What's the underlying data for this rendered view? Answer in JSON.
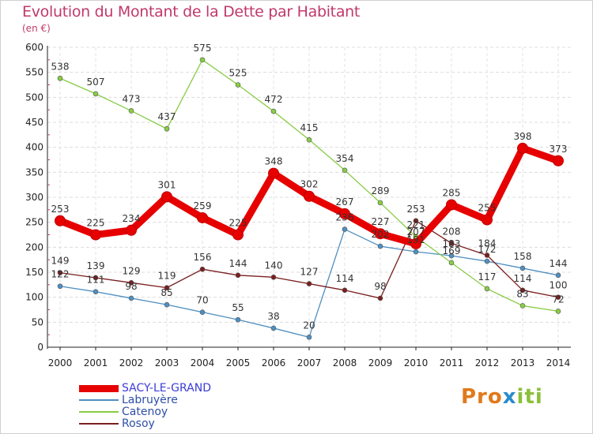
{
  "title": "Evolution du Montant de la Dette par Habitant",
  "subtitle": "(en €)",
  "logo_text": "Proxiti",
  "chart_data": {
    "type": "line",
    "title": "Evolution du Montant de la Dette par Habitant",
    "subtitle": "(en €)",
    "xlabel": "",
    "ylabel": "",
    "x": [
      "2000",
      "2001",
      "2002",
      "2003",
      "2004",
      "2005",
      "2006",
      "2007",
      "2008",
      "2009",
      "2010",
      "2011",
      "2012",
      "2013",
      "2014"
    ],
    "ylim": [
      0,
      600
    ],
    "yticks": [
      0,
      50,
      100,
      150,
      200,
      250,
      300,
      350,
      400,
      450,
      500,
      550,
      600
    ],
    "grid": true,
    "legend": "bottom-left",
    "series": [
      {
        "name": "SACY-LE-GRAND",
        "color": "#e60000",
        "values": [
          253,
          225,
          234,
          301,
          259,
          225,
          348,
          302,
          267,
          227,
          207,
          285,
          255,
          398,
          373
        ]
      },
      {
        "name": "Labruyère",
        "color": "#4f8fc0",
        "values": [
          122,
          111,
          98,
          85,
          70,
          55,
          38,
          20,
          236,
          202,
          191,
          183,
          172,
          158,
          144
        ]
      },
      {
        "name": "Catenoy",
        "color": "#88cc44",
        "values": [
          538,
          507,
          473,
          437,
          575,
          525,
          472,
          415,
          354,
          289,
          221,
          169,
          117,
          83,
          72
        ]
      },
      {
        "name": "Rosoy",
        "color": "#7a1f1f",
        "values": [
          149,
          139,
          129,
          119,
          156,
          144,
          140,
          127,
          114,
          98,
          253,
          208,
          184,
          114,
          100
        ]
      }
    ]
  }
}
